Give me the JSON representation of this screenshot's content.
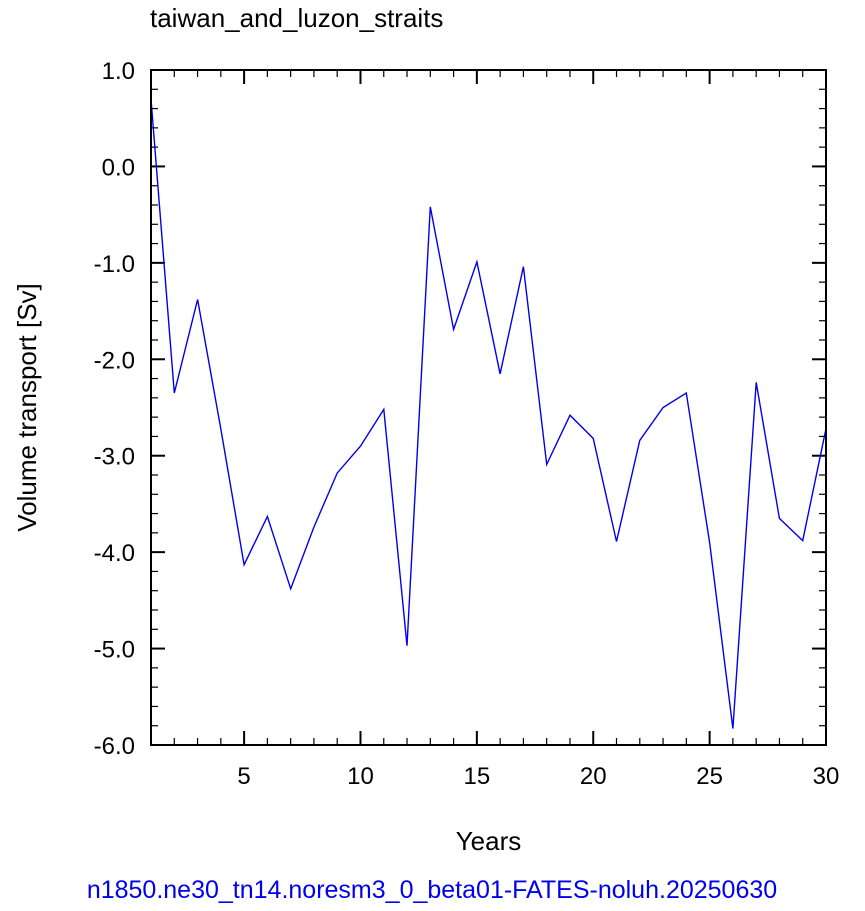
{
  "chart_data": {
    "type": "line",
    "title": "taiwan_and_luzon_straits",
    "xlabel": "Years",
    "ylabel": "Volume transport [Sv]",
    "xlim": [
      1,
      30
    ],
    "ylim": [
      -6.0,
      1.0
    ],
    "x_ticks": [
      5,
      10,
      15,
      20,
      25,
      30
    ],
    "x_tick_labels": [
      "5",
      "10",
      "15",
      "20",
      "25",
      "30"
    ],
    "y_ticks": [
      1.0,
      0.0,
      -1.0,
      -2.0,
      -3.0,
      -4.0,
      -5.0,
      -6.0
    ],
    "y_tick_labels": [
      "1.0",
      "0.0",
      "-1.0",
      "-2.0",
      "-3.0",
      "-4.0",
      "-5.0",
      "-6.0"
    ],
    "grid": false,
    "line_color": "#0000ee",
    "series": [
      {
        "x": [
          1,
          2,
          3,
          4,
          5,
          6,
          7,
          8,
          9,
          10,
          11,
          12,
          13,
          14,
          15,
          16,
          17,
          18,
          19,
          20,
          21,
          22,
          23,
          24,
          25,
          26,
          27,
          28,
          29,
          30
        ],
        "values": [
          0.7,
          -2.35,
          -1.38,
          -2.72,
          -4.13,
          -3.63,
          -4.38,
          -3.74,
          -3.18,
          -2.9,
          -2.52,
          -4.97,
          -0.42,
          -1.69,
          -0.99,
          -2.15,
          -1.04,
          -3.09,
          -2.58,
          -2.82,
          -3.89,
          -2.84,
          -2.5,
          -2.35,
          -3.9,
          -5.83,
          -2.24,
          -3.65,
          -3.88,
          -2.72
        ]
      }
    ]
  },
  "footer": {
    "run_name": "n1850.ne30_tn14.noresm3_0_beta01-FATES-noluh.20250630",
    "color": "#0000ee"
  }
}
